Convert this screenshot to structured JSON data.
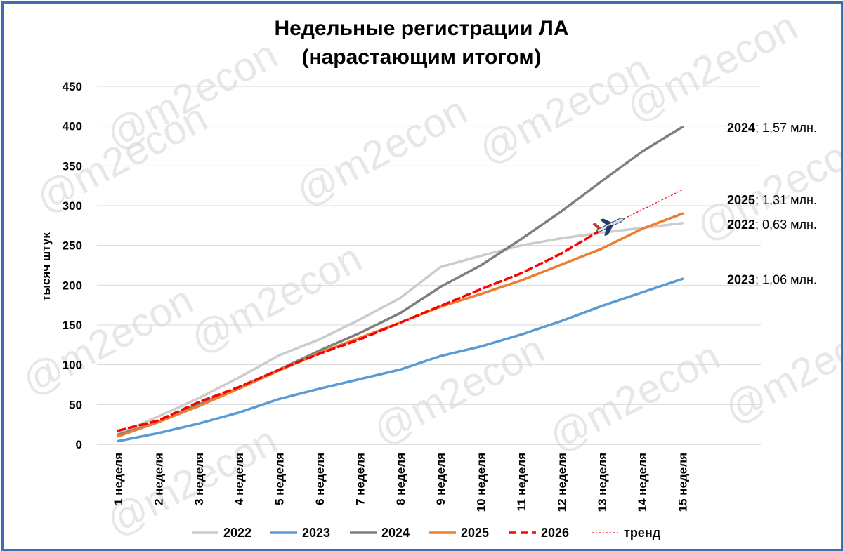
{
  "watermark": "@m2econ",
  "chart_data": {
    "type": "line",
    "title": [
      "Недельные регистрации ЛА",
      "(нарастающим итогом)"
    ],
    "ylabel": "тысяч штук",
    "xlabel": "",
    "ylim": [
      0,
      450
    ],
    "yticks": [
      "0",
      "50",
      "100",
      "150",
      "200",
      "250",
      "300",
      "350",
      "400",
      "450"
    ],
    "grid": true,
    "legend_position": "bottom",
    "categories": [
      "1 неделя",
      "2 неделя",
      "3 неделя",
      "4 неделя",
      "5 неделя",
      "6 неделя",
      "7 неделя",
      "8 неделя",
      "9 неделя",
      "10 неделя",
      "11 неделя",
      "12 неделя",
      "13 неделя",
      "14 неделя",
      "15 неделя"
    ],
    "series": [
      {
        "name": "2022",
        "color": "#cccccc",
        "style": "solid",
        "values": [
          13,
          35,
          58,
          84,
          112,
          132,
          157,
          184,
          223,
          237,
          250,
          259,
          266,
          272,
          278
        ]
      },
      {
        "name": "2023",
        "color": "#5b9bd5",
        "style": "solid",
        "values": [
          4,
          14,
          26,
          40,
          57,
          70,
          82,
          94,
          111,
          123,
          138,
          155,
          174,
          191,
          208
        ]
      },
      {
        "name": "2024",
        "color": "#7f7f7f",
        "style": "solid",
        "values": [
          12,
          28,
          50,
          71,
          94,
          118,
          140,
          165,
          198,
          225,
          258,
          293,
          331,
          368,
          399
        ]
      },
      {
        "name": "2025",
        "color": "#ed7d31",
        "style": "solid",
        "values": [
          10,
          28,
          48,
          70,
          93,
          115,
          134,
          153,
          173,
          189,
          206,
          226,
          246,
          271,
          290
        ]
      },
      {
        "name": "2026",
        "color": "#ff0000",
        "style": "dashed",
        "values": [
          17,
          30,
          53,
          72,
          94,
          114,
          132,
          153,
          174,
          195,
          215,
          240,
          270,
          null,
          null
        ]
      },
      {
        "name": "тренд",
        "color": "#ff0000",
        "style": "dotted",
        "values": [
          null,
          null,
          null,
          null,
          null,
          null,
          null,
          null,
          null,
          null,
          null,
          null,
          270,
          295,
          320
        ]
      }
    ],
    "annotations": [
      {
        "year": "2024",
        "text": "; 1,57 млн.",
        "y": 398
      },
      {
        "year": "2025",
        "text": "; 1,31 млн.",
        "y": 307
      },
      {
        "year": "2022",
        "text": "; 0,63 млн.",
        "y": 276
      },
      {
        "year": "2023",
        "text": "; 1,06 млн.",
        "y": 207
      }
    ]
  }
}
